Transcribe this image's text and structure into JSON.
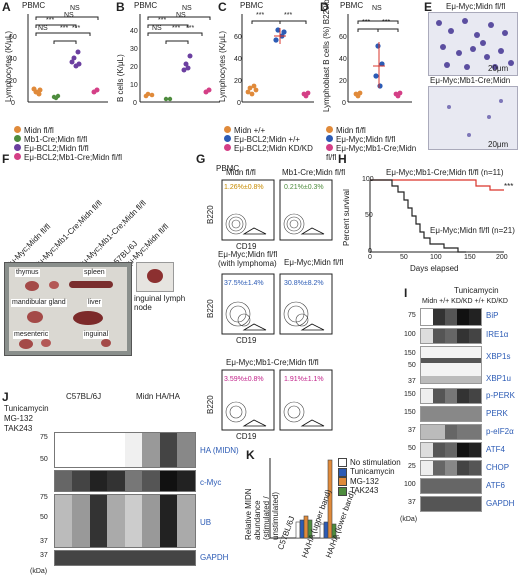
{
  "panelA": {
    "label": "A",
    "title": "PBMC",
    "ylabel": "Lymphocytes (K/μL)",
    "yticks": [
      "0",
      "20",
      "40",
      "60"
    ],
    "ns1": "NS",
    "ns2": "NS",
    "ns3": "NS",
    "sig1": "***",
    "sig2": "***",
    "sig3": "***",
    "sig4": "***"
  },
  "panelB": {
    "label": "B",
    "title": "PBMC",
    "ylabel": "B cells (K/μL)",
    "yticks": [
      "0",
      "10",
      "20",
      "30",
      "40"
    ],
    "ns1": "NS",
    "ns2": "NS",
    "ns3": "NS",
    "sig1": "***",
    "sig2": "***",
    "sig3": "***",
    "sig4": "***"
  },
  "legendAB": [
    "Midn fl/fl",
    "Mb1-Cre;Midn fl/fl",
    "Eμ-BCL2;Midn fl/fl",
    "Eμ-BCL2;Mb1-Cre;Midn fl/fl"
  ],
  "panelC": {
    "label": "C",
    "title": "PBMC",
    "ylabel": "Lymphocytes (K/μL)",
    "yticks": [
      "0",
      "20",
      "40",
      "60"
    ],
    "sig1": "***",
    "sig2": "***"
  },
  "legendC": [
    "Midn +/+",
    "Eμ-BCL2;Midn +/+",
    "Eμ-BCL2;Midn KD/KD"
  ],
  "panelD": {
    "label": "D",
    "title": "PBMC",
    "ns": "NS",
    "sig1": "***",
    "sig2": "***",
    "ylabel": "Lymphoblast B cells (%) B220low CD19high",
    "yticks": [
      "0",
      "20",
      "40",
      "60"
    ]
  },
  "legendD": [
    "Midn fl/fl",
    "Eμ-Myc;Midn fl/fl",
    "Eμ-Myc;Mb1-Cre;Midn fl/fl"
  ],
  "panelE": {
    "label": "E",
    "cap1": "Eμ-Myc;Midn fl/fl",
    "cap2": "Eμ-Myc;Mb1-Cre;Midn fl/fl",
    "scale": "20μm"
  },
  "panelF": {
    "label": "F",
    "cols": [
      "Eμ-Myc;Midn fl/fl",
      "Eμ-Myc;Mb1-Cre;Midn fl/fl",
      "Eμ-Myc;Mb1-Cre;Midn fl/fl",
      "C57BL/6J",
      "Eμ-Myc;Midn fl/fl"
    ],
    "organs": [
      "thymus",
      "spleen",
      "mandibular gland",
      "liver",
      "mesenteric",
      "inguinal"
    ],
    "node": "inguinal lymph node"
  },
  "panelG": {
    "label": "G",
    "title": "PBMC",
    "rows": [
      {
        "left": "Midn fl/fl",
        "right": "Mb1-Cre;Midn fl/fl",
        "lv": "1.26%±0.8%",
        "rv": "0.21%±0.3%",
        "color": "#c68a00"
      },
      {
        "left": "Eμ-Myc;Midn fl/fl (with lymphoma)",
        "right": "Eμ-Myc;Midn fl/fl",
        "lv": "37.5%±1.4%",
        "rv": "30.8%±8.2%",
        "color": "#2c5bb5"
      },
      {
        "left": "Eμ-Myc;Mb1-Cre;Midn fl/fl",
        "right": "",
        "lv": "3.59%±0.8%",
        "rv": "1.91%±1.1%",
        "color": "#c2228a"
      }
    ],
    "x": "CD19",
    "y": "B220"
  },
  "panelH": {
    "label": "H",
    "l1": "Eμ-Myc;Mb1-Cre;Midn fl/fl (n=11)",
    "l2": "Eμ-Myc;Midn fl/fl (n=21)",
    "sig": "***",
    "xlabel": "Days elapsed",
    "ylabel": "Percent survival",
    "xticks": [
      "0",
      "50",
      "100",
      "150",
      "200"
    ],
    "yticks": [
      "0",
      "50",
      "100"
    ]
  },
  "panelI": {
    "label": "I",
    "header": "Tunicamycin",
    "geno": "Midn +/+ KD/KD +/+ KD/KD",
    "bands": [
      "BiP",
      "IRE1α",
      "XBP1s",
      "XBP1u",
      "p-PERK",
      "PERK",
      "p-eIF2α",
      "ATF4",
      "CHOP",
      "ATF6",
      "GAPDH"
    ],
    "mw": [
      "75",
      "100",
      "150",
      "50",
      "37",
      "150",
      "150",
      "37",
      "50",
      "25",
      "100",
      "37"
    ],
    "kda": "(kDa)"
  },
  "panelJ": {
    "label": "J",
    "group1": "C57BL/6J",
    "group2": "Midn HA/HA",
    "rows": [
      "Tunicamycin",
      "MG-132",
      "TAK243"
    ],
    "bands": [
      "HA (MIDN)",
      "c-Myc",
      "UB",
      "GAPDH"
    ],
    "mw": [
      "75",
      "50",
      "75",
      "50",
      "37",
      "37"
    ],
    "kda": "(kDa)"
  },
  "panelK": {
    "label": "K",
    "ylabel": "Relative MIDN abundance (stimulated / unstimulated)",
    "legend": [
      "No stimulation",
      "Tunicamycin",
      "MG-132",
      "TAK243"
    ],
    "x": [
      "C57BL/6J",
      "HA/HA (upper band)",
      "HA/HA (lower band)"
    ]
  },
  "colors": {
    "orange": "#e08a3a",
    "green": "#4e8c3e",
    "purple": "#6b3fa0",
    "pink": "#d43f86",
    "blue": "#2c5bb5",
    "red": "#d9342b",
    "gray": "#888888"
  }
}
